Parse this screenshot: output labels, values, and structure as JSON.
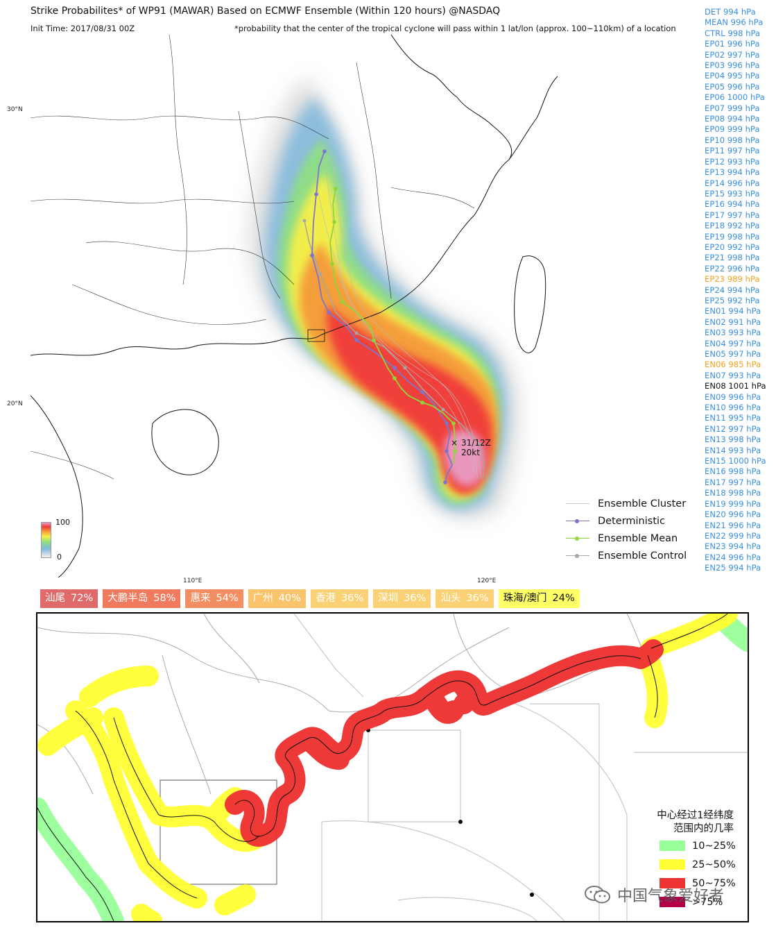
{
  "header": {
    "title": "Strike Probabilites* of WP91 (MAWAR) Based on ECMWF Ensemble (Within 120 hours) @NASDAQ",
    "init_time": "Init Time: 2017/08/31 00Z",
    "note": "*probability that the center of the tropical cyclone will pass within 1 lat/lon (approx. 100~110km) of a location"
  },
  "members": [
    {
      "label": "DET 994 hPa",
      "color": "#3a8fe0"
    },
    {
      "label": "MEAN 996 hPa",
      "color": "#3a8fe0"
    },
    {
      "label": "CTRL 998 hPa",
      "color": "#3a8fe0"
    },
    {
      "label": "EP01 996 hPa",
      "color": "#3a8fe0"
    },
    {
      "label": "EP02 997 hPa",
      "color": "#3a8fe0"
    },
    {
      "label": "EP03 996 hPa",
      "color": "#3a8fe0"
    },
    {
      "label": "EP04 995 hPa",
      "color": "#3a8fe0"
    },
    {
      "label": "EP05 996 hPa",
      "color": "#3a8fe0"
    },
    {
      "label": "EP06 1000 hPa",
      "color": "#3a8fe0"
    },
    {
      "label": "EP07 999 hPa",
      "color": "#3a8fe0"
    },
    {
      "label": "EP08 994 hPa",
      "color": "#3a8fe0"
    },
    {
      "label": "EP09 999 hPa",
      "color": "#3a8fe0"
    },
    {
      "label": "EP10 998 hPa",
      "color": "#3a8fe0"
    },
    {
      "label": "EP11 997 hPa",
      "color": "#3a8fe0"
    },
    {
      "label": "EP12 993 hPa",
      "color": "#3a8fe0"
    },
    {
      "label": "EP13 994 hPa",
      "color": "#3a8fe0"
    },
    {
      "label": "EP14 996 hPa",
      "color": "#3a8fe0"
    },
    {
      "label": "EP15 993 hPa",
      "color": "#3a8fe0"
    },
    {
      "label": "EP16 994 hPa",
      "color": "#3a8fe0"
    },
    {
      "label": "EP17 997 hPa",
      "color": "#3a8fe0"
    },
    {
      "label": "EP18 992 hPa",
      "color": "#3a8fe0"
    },
    {
      "label": "EP19 998 hPa",
      "color": "#3a8fe0"
    },
    {
      "label": "EP20 992 hPa",
      "color": "#3a8fe0"
    },
    {
      "label": "EP21 998 hPa",
      "color": "#3a8fe0"
    },
    {
      "label": "EP22 996 hPa",
      "color": "#3a8fe0"
    },
    {
      "label": "EP23 989 hPa",
      "color": "#f5a11c"
    },
    {
      "label": "EP24 994 hPa",
      "color": "#3a8fe0"
    },
    {
      "label": "EP25 992 hPa",
      "color": "#3a8fe0"
    },
    {
      "label": "EN01 994 hPa",
      "color": "#3a8fe0"
    },
    {
      "label": "EN02 991 hPa",
      "color": "#3a8fe0"
    },
    {
      "label": "EN03 993 hPa",
      "color": "#3a8fe0"
    },
    {
      "label": "EN04 997 hPa",
      "color": "#3a8fe0"
    },
    {
      "label": "EN05 997 hPa",
      "color": "#3a8fe0"
    },
    {
      "label": "EN06 985 hPa",
      "color": "#f5a11c"
    },
    {
      "label": "EN07 993 hPa",
      "color": "#3a8fe0"
    },
    {
      "label": "EN08 1001 hPa",
      "color": "#111111"
    },
    {
      "label": "EN09 996 hPa",
      "color": "#3a8fe0"
    },
    {
      "label": "EN10 996 hPa",
      "color": "#3a8fe0"
    },
    {
      "label": "EN11 995 hPa",
      "color": "#3a8fe0"
    },
    {
      "label": "EN12 997 hPa",
      "color": "#3a8fe0"
    },
    {
      "label": "EN13 998 hPa",
      "color": "#3a8fe0"
    },
    {
      "label": "EN14 993 hPa",
      "color": "#3a8fe0"
    },
    {
      "label": "EN15 1000 hPa",
      "color": "#3a8fe0"
    },
    {
      "label": "EN16 998 hPa",
      "color": "#3a8fe0"
    },
    {
      "label": "EN17 997 hPa",
      "color": "#3a8fe0"
    },
    {
      "label": "EN18 998 hPa",
      "color": "#3a8fe0"
    },
    {
      "label": "EN19 999 hPa",
      "color": "#3a8fe0"
    },
    {
      "label": "EN20 996 hPa",
      "color": "#3a8fe0"
    },
    {
      "label": "EN21 996 hPa",
      "color": "#3a8fe0"
    },
    {
      "label": "EN22 999 hPa",
      "color": "#3a8fe0"
    },
    {
      "label": "EN23 994 hPa",
      "color": "#3a8fe0"
    },
    {
      "label": "EN24 996 hPa",
      "color": "#3a8fe0"
    },
    {
      "label": "EN25 994 hPa",
      "color": "#3a8fe0"
    }
  ],
  "axes": {
    "lat_30": "30°N",
    "lat_20": "20°N",
    "lon_110": "110°E",
    "lon_120": "120°E"
  },
  "colorbar": {
    "max": "100",
    "min": "0"
  },
  "storm": {
    "time": "31/12Z",
    "intensity": "20kt",
    "marker": "×"
  },
  "legend": {
    "items": [
      {
        "label": "Ensemble Cluster",
        "color": "#cccccc",
        "marker": false
      },
      {
        "label": "Deterministic",
        "color": "#7b76cc",
        "marker": true
      },
      {
        "label": "Ensemble Mean",
        "color": "#8fd63a",
        "marker": true
      },
      {
        "label": "Ensemble Control",
        "color": "#a6a6a6",
        "marker": true
      }
    ]
  },
  "cities": [
    {
      "name": "汕尾",
      "pct": "72%",
      "color": "#e06a6a",
      "text": "#ffffff"
    },
    {
      "name": "大鹏半岛",
      "pct": "58%",
      "color": "#f07a5e",
      "text": "#ffffff"
    },
    {
      "name": "惠来",
      "pct": "54%",
      "color": "#f28e62",
      "text": "#ffffff"
    },
    {
      "name": "广州",
      "pct": "40%",
      "color": "#f9c46b",
      "text": "#ffffff"
    },
    {
      "name": "香港",
      "pct": "36%",
      "color": "#fad275",
      "text": "#ffffff"
    },
    {
      "name": "深圳",
      "pct": "36%",
      "color": "#fad275",
      "text": "#ffffff"
    },
    {
      "name": "汕头",
      "pct": "36%",
      "color": "#fad275",
      "text": "#ffffff"
    },
    {
      "name": "珠海/澳门",
      "pct": "24%",
      "color": "#ffff66",
      "text": "#111111"
    }
  ],
  "prob_legend": {
    "title_line1": "中心经过1经纬度",
    "title_line2": "范围内的几率",
    "items": [
      {
        "label": "10~25%",
        "color": "#99ff99"
      },
      {
        "label": "25~50%",
        "color": "#ffff33"
      },
      {
        "label": "50~75%",
        "color": "#ee3333"
      },
      {
        "label": ">75%",
        "color": "#b30047"
      }
    ]
  },
  "watermark": "中国气象爱好者"
}
